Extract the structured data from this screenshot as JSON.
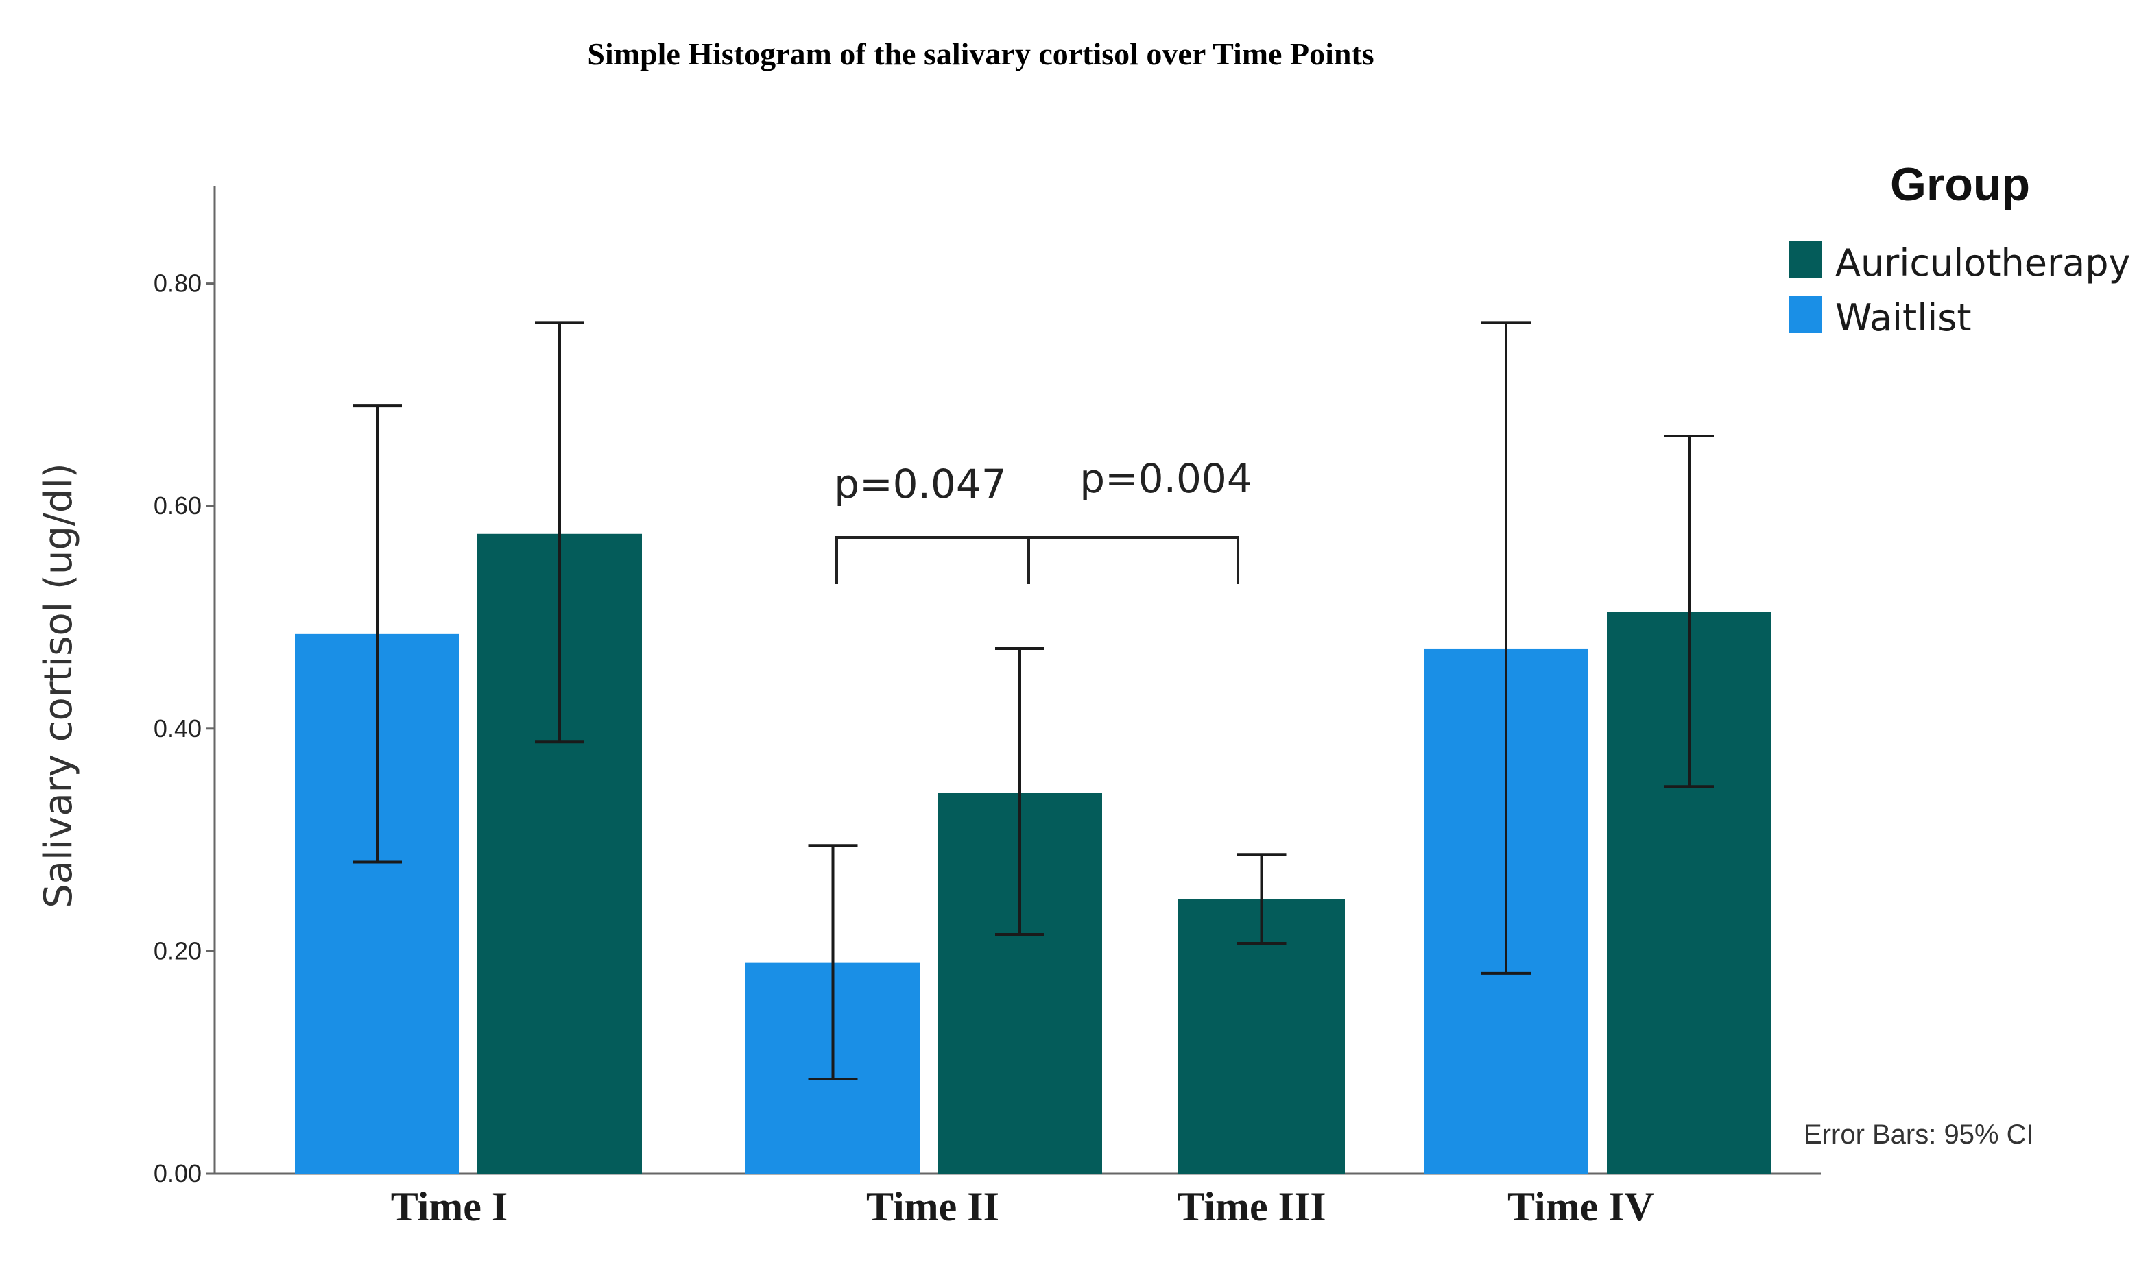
{
  "chart_data": {
    "type": "bar",
    "title": "Simple Histogram of the salivary cortisol over Time Points",
    "xlabel": "",
    "ylabel": "Salivary cortisol (ug/dl)",
    "ylim": [
      0,
      0.88
    ],
    "yticks": [
      "0.00",
      "0.20",
      "0.40",
      "0.60",
      "0.80"
    ],
    "ytick_values": [
      0,
      0.2,
      0.4,
      0.6,
      0.8
    ],
    "grid": false,
    "categories": [
      "Time I",
      "Time II",
      "Time III",
      "Time IV"
    ],
    "legend": {
      "title": "Group",
      "placement": "top-right"
    },
    "series": [
      {
        "name": "Waitlist",
        "color": "#1a8fe6",
        "values": [
          0.485,
          0.19,
          0.005,
          0.472
        ],
        "ci_low": [
          0.28,
          0.085,
          null,
          0.18
        ],
        "ci_high": [
          0.69,
          0.295,
          null,
          0.765
        ]
      },
      {
        "name": "Auriculotherapy",
        "color": "#045c5a",
        "values": [
          0.575,
          0.342,
          0.247,
          0.505
        ],
        "ci_low": [
          0.388,
          0.215,
          0.207,
          0.348
        ],
        "ci_high": [
          0.765,
          0.472,
          0.287,
          0.663
        ]
      }
    ],
    "annotations": [
      {
        "text": "p=0.047",
        "between": [
          "Time II",
          "Time II"
        ]
      },
      {
        "text": "p=0.004",
        "between": [
          "Time II",
          "Time III"
        ]
      }
    ],
    "note": "Error Bars: 95% CI"
  }
}
